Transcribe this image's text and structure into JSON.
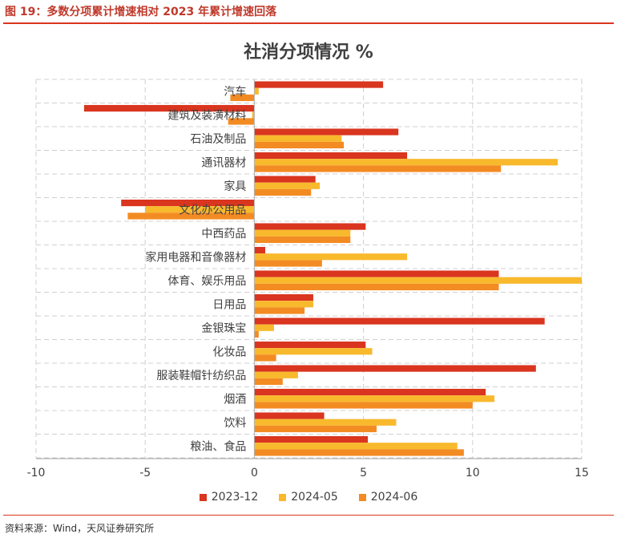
{
  "header": {
    "figure_title": "图 19：多数分项累计增速相对 2023 年累计增速回落"
  },
  "footer": {
    "source": "资料来源：Wind，天风证券研究所"
  },
  "colors": {
    "rule": "#d9351f",
    "grid": "#d0d0d0",
    "text": "#404040"
  },
  "chart_data": {
    "type": "bar",
    "orientation": "horizontal",
    "title": "社消分项情况 %",
    "xlim": [
      -10,
      15
    ],
    "xticks": [
      -10,
      -5,
      0,
      5,
      10,
      15
    ],
    "grid": true,
    "legend_position": "bottom",
    "categories": [
      "汽车",
      "建筑及装潢材料",
      "石油及制品",
      "通讯器材",
      "家具",
      "文化办公用品",
      "中西药品",
      "家用电器和音像器材",
      "体育、娱乐用品",
      "日用品",
      "金银珠宝",
      "化妆品",
      "服装鞋帽针纺织品",
      "烟酒",
      "饮料",
      "粮油、食品"
    ],
    "series": [
      {
        "name": "2023-12",
        "color": "#d9351f",
        "values": [
          5.9,
          -7.8,
          6.6,
          7.0,
          2.8,
          -6.1,
          5.1,
          0.5,
          11.2,
          2.7,
          13.3,
          5.1,
          12.9,
          10.6,
          3.2,
          5.2
        ]
      },
      {
        "name": "2024-05",
        "color": "#f8b92d",
        "values": [
          0.2,
          -0.1,
          4.0,
          13.9,
          3.0,
          -5.0,
          4.4,
          7.0,
          15.0,
          2.7,
          0.9,
          5.4,
          2.0,
          11.0,
          6.5,
          9.3
        ]
      },
      {
        "name": "2024-06",
        "color": "#f38b23",
        "values": [
          -1.1,
          -1.2,
          4.1,
          11.3,
          2.6,
          -5.8,
          4.4,
          3.1,
          11.2,
          2.3,
          0.2,
          1.0,
          1.3,
          10.0,
          5.6,
          9.6
        ]
      }
    ]
  }
}
